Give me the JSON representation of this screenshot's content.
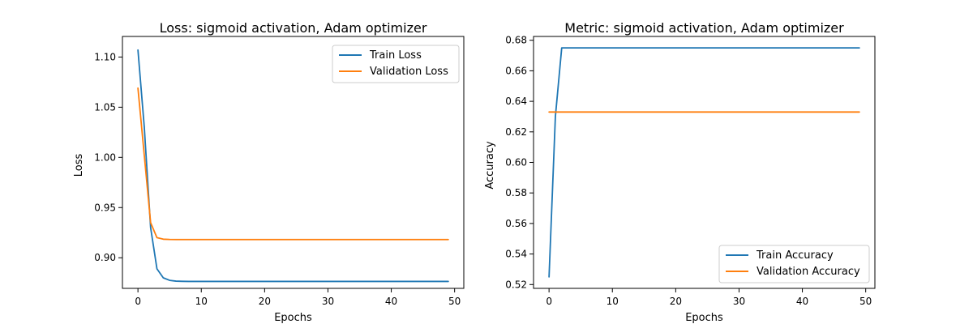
{
  "chart_data": [
    {
      "type": "line",
      "title": "Loss: sigmoid activation, Adam optimizer",
      "xlabel": "Epochs",
      "ylabel": "Loss",
      "xlim": [
        -2.45,
        51.45
      ],
      "ylim": [
        0.8695,
        1.1205
      ],
      "xticks": [
        0,
        10,
        20,
        30,
        40,
        50
      ],
      "yticks": [
        0.9,
        0.95,
        1.0,
        1.05,
        1.1
      ],
      "ytick_labels": [
        "0.90",
        "0.95",
        "1.00",
        "1.05",
        "1.10"
      ],
      "xtick_labels": [
        "0",
        "10",
        "20",
        "30",
        "40",
        "50"
      ],
      "grid": false,
      "legend_position": "top-right",
      "x": [
        0,
        1,
        2,
        3,
        4,
        5,
        6,
        7,
        8,
        9,
        10,
        11,
        12,
        13,
        14,
        15,
        16,
        17,
        18,
        19,
        20,
        21,
        22,
        23,
        24,
        25,
        26,
        27,
        28,
        29,
        30,
        31,
        32,
        33,
        34,
        35,
        36,
        37,
        38,
        39,
        40,
        41,
        42,
        43,
        44,
        45,
        46,
        47,
        48,
        49
      ],
      "series": [
        {
          "name": "Train Loss",
          "color": "#1f77b4",
          "values": [
            1.107,
            1.03,
            0.93,
            0.889,
            0.88,
            0.8775,
            0.8767,
            0.8765,
            0.8764,
            0.8764,
            0.8764,
            0.8764,
            0.8764,
            0.8764,
            0.8764,
            0.8764,
            0.8764,
            0.8764,
            0.8764,
            0.8764,
            0.8764,
            0.8764,
            0.8764,
            0.8764,
            0.8764,
            0.8764,
            0.8764,
            0.8764,
            0.8764,
            0.8764,
            0.8764,
            0.8764,
            0.8764,
            0.8764,
            0.8764,
            0.8764,
            0.8764,
            0.8764,
            0.8764,
            0.8764,
            0.8764,
            0.8764,
            0.8764,
            0.8764,
            0.8764,
            0.8764,
            0.8764,
            0.8764,
            0.8764,
            0.8764
          ]
        },
        {
          "name": "Validation Loss",
          "color": "#ff7f0e",
          "values": [
            1.069,
            1.002,
            0.935,
            0.92,
            0.9185,
            0.9182,
            0.9181,
            0.9181,
            0.9181,
            0.9181,
            0.9181,
            0.9181,
            0.9181,
            0.9181,
            0.9181,
            0.9181,
            0.9181,
            0.9181,
            0.9181,
            0.9181,
            0.9181,
            0.9181,
            0.9181,
            0.9181,
            0.9181,
            0.9181,
            0.9181,
            0.9181,
            0.9181,
            0.9181,
            0.9181,
            0.9181,
            0.9181,
            0.9181,
            0.9181,
            0.9181,
            0.9181,
            0.9181,
            0.9181,
            0.9181,
            0.9181,
            0.9181,
            0.9181,
            0.9181,
            0.9181,
            0.9181,
            0.9181,
            0.9181,
            0.9181,
            0.9181
          ]
        }
      ]
    },
    {
      "type": "line",
      "title": "Metric: sigmoid activation, Adam optimizer",
      "xlabel": "Epochs",
      "ylabel": "Accuracy",
      "xlim": [
        -2.45,
        51.45
      ],
      "ylim": [
        0.5175,
        0.6825
      ],
      "xticks": [
        0,
        10,
        20,
        30,
        40,
        50
      ],
      "yticks": [
        0.52,
        0.54,
        0.56,
        0.58,
        0.6,
        0.62,
        0.64,
        0.66,
        0.68
      ],
      "ytick_labels": [
        "0.52",
        "0.54",
        "0.56",
        "0.58",
        "0.60",
        "0.62",
        "0.64",
        "0.66",
        "0.68"
      ],
      "xtick_labels": [
        "0",
        "10",
        "20",
        "30",
        "40",
        "50"
      ],
      "grid": false,
      "legend_position": "bottom-right",
      "x": [
        0,
        1,
        2,
        3,
        4,
        5,
        6,
        7,
        8,
        9,
        10,
        11,
        12,
        13,
        14,
        15,
        16,
        17,
        18,
        19,
        20,
        21,
        22,
        23,
        24,
        25,
        26,
        27,
        28,
        29,
        30,
        31,
        32,
        33,
        34,
        35,
        36,
        37,
        38,
        39,
        40,
        41,
        42,
        43,
        44,
        45,
        46,
        47,
        48,
        49
      ],
      "series": [
        {
          "name": "Train Accuracy",
          "color": "#1f77b4",
          "values": [
            0.525,
            0.63,
            0.675,
            0.675,
            0.675,
            0.675,
            0.675,
            0.675,
            0.675,
            0.675,
            0.675,
            0.675,
            0.675,
            0.675,
            0.675,
            0.675,
            0.675,
            0.675,
            0.675,
            0.675,
            0.675,
            0.675,
            0.675,
            0.675,
            0.675,
            0.675,
            0.675,
            0.675,
            0.675,
            0.675,
            0.675,
            0.675,
            0.675,
            0.675,
            0.675,
            0.675,
            0.675,
            0.675,
            0.675,
            0.675,
            0.675,
            0.675,
            0.675,
            0.675,
            0.675,
            0.675,
            0.675,
            0.675,
            0.675,
            0.675
          ]
        },
        {
          "name": "Validation Accuracy",
          "color": "#ff7f0e",
          "values": [
            0.633,
            0.633,
            0.633,
            0.633,
            0.633,
            0.633,
            0.633,
            0.633,
            0.633,
            0.633,
            0.633,
            0.633,
            0.633,
            0.633,
            0.633,
            0.633,
            0.633,
            0.633,
            0.633,
            0.633,
            0.633,
            0.633,
            0.633,
            0.633,
            0.633,
            0.633,
            0.633,
            0.633,
            0.633,
            0.633,
            0.633,
            0.633,
            0.633,
            0.633,
            0.633,
            0.633,
            0.633,
            0.633,
            0.633,
            0.633,
            0.633,
            0.633,
            0.633,
            0.633,
            0.633,
            0.633,
            0.633,
            0.633,
            0.633,
            0.633
          ]
        }
      ]
    }
  ]
}
